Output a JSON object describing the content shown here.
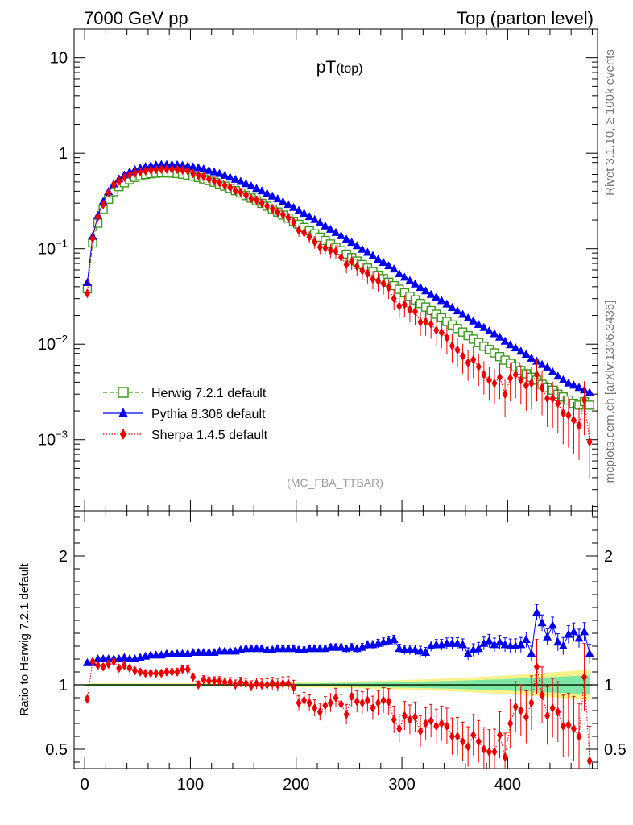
{
  "header": {
    "left": "7000 GeV pp",
    "right": "Top (parton level)"
  },
  "side": {
    "rivet": "Rivet 3.1.10, ≥ 100k events",
    "mcplots": "mcplots.cern.ch [arXiv:1306.3436]"
  },
  "colors": {
    "herwig": "#3a9a1a",
    "pythia": "#0000ee",
    "sherpa": "#ee0000",
    "band_green": "#7de8a6",
    "band_yellow": "#f8f28a"
  },
  "chart_data": [
    {
      "type": "line",
      "title": "pT",
      "title_sub": "(top)",
      "watermark": "(MC_FBA_TTBAR)",
      "xlim": [
        -10,
        485
      ],
      "ylim": [
        0.00018,
        20
      ],
      "yscale": "log",
      "ytick_labels": [
        "10",
        "1",
        "10−1",
        "10−2",
        "10−3"
      ],
      "ytick_values": [
        10,
        1,
        0.1,
        0.01,
        0.001
      ],
      "legend_position": "bottom-left",
      "legend": [
        "Herwig 7.2.1 default",
        "Pythia 8.308 default",
        "Sherpa 1.4.5 default"
      ],
      "x": [
        2.5,
        7.5,
        12.5,
        17.5,
        22.5,
        27.5,
        32.5,
        37.5,
        42.5,
        47.5,
        52.5,
        57.5,
        62.5,
        67.5,
        72.5,
        77.5,
        82.5,
        87.5,
        92.5,
        97.5,
        102.5,
        107.5,
        112.5,
        117.5,
        122.5,
        127.5,
        132.5,
        137.5,
        142.5,
        147.5,
        152.5,
        157.5,
        162.5,
        167.5,
        172.5,
        177.5,
        182.5,
        187.5,
        192.5,
        197.5,
        202.5,
        207.5,
        212.5,
        217.5,
        222.5,
        227.5,
        232.5,
        237.5,
        242.5,
        247.5,
        252.5,
        257.5,
        262.5,
        267.5,
        272.5,
        277.5,
        282.5,
        287.5,
        292.5,
        297.5,
        302.5,
        307.5,
        312.5,
        317.5,
        322.5,
        327.5,
        332.5,
        337.5,
        342.5,
        347.5,
        352.5,
        357.5,
        362.5,
        367.5,
        372.5,
        377.5,
        382.5,
        387.5,
        392.5,
        397.5,
        402.5,
        407.5,
        412.5,
        417.5,
        422.5,
        427.5,
        432.5,
        437.5,
        442.5,
        447.5,
        452.5,
        457.5,
        462.5,
        467.5,
        472.5,
        477.5
      ],
      "series": [
        {
          "name": "Herwig 7.2.1 default",
          "values": [
            0.038,
            0.115,
            0.185,
            0.258,
            0.33,
            0.395,
            0.447,
            0.49,
            0.528,
            0.558,
            0.58,
            0.598,
            0.61,
            0.618,
            0.622,
            0.622,
            0.619,
            0.613,
            0.603,
            0.59,
            0.575,
            0.557,
            0.538,
            0.517,
            0.496,
            0.474,
            0.451,
            0.428,
            0.405,
            0.383,
            0.36,
            0.339,
            0.318,
            0.298,
            0.279,
            0.26,
            0.242,
            0.225,
            0.209,
            0.194,
            0.18,
            0.167,
            0.154,
            0.143,
            0.132,
            0.122,
            0.112,
            0.103,
            0.0953,
            0.0877,
            0.0807,
            0.0742,
            0.0682,
            0.0627,
            0.0576,
            0.0529,
            0.0486,
            0.0446,
            0.041,
            0.0376,
            0.0345,
            0.0317,
            0.0291,
            0.0267,
            0.0245,
            0.0225,
            0.0206,
            0.0189,
            0.0173,
            0.0159,
            0.0146,
            0.0134,
            0.0123,
            0.0113,
            0.0104,
            0.0095,
            0.0088,
            0.0081,
            0.0074,
            0.0068,
            0.0063,
            0.0058,
            0.0053,
            0.0049,
            0.0045,
            0.0042,
            0.0038,
            0.0035,
            0.0033,
            0.003,
            0.0028,
            0.0026,
            0.0024,
            0.0023,
            0.0025,
            0.0023
          ]
        },
        {
          "name": "Pythia 8.308 default",
          "values": [
            0.044,
            0.134,
            0.222,
            0.31,
            0.395,
            0.474,
            0.536,
            0.588,
            0.634,
            0.67,
            0.698,
            0.72,
            0.736,
            0.748,
            0.755,
            0.758,
            0.757,
            0.752,
            0.744,
            0.732,
            0.717,
            0.7,
            0.68,
            0.658,
            0.635,
            0.61,
            0.584,
            0.557,
            0.53,
            0.503,
            0.477,
            0.451,
            0.425,
            0.401,
            0.377,
            0.353,
            0.331,
            0.309,
            0.289,
            0.269,
            0.25,
            0.233,
            0.216,
            0.201,
            0.186,
            0.172,
            0.159,
            0.147,
            0.136,
            0.125,
            0.116,
            0.107,
            0.098,
            0.091,
            0.084,
            0.077,
            0.0715,
            0.066,
            0.061,
            0.0545,
            0.05,
            0.046,
            0.0425,
            0.039,
            0.036,
            0.033,
            0.031,
            0.0285,
            0.0262,
            0.0241,
            0.0222,
            0.0204,
            0.0187,
            0.0174,
            0.016,
            0.0149,
            0.0137,
            0.0128,
            0.0118,
            0.0107,
            0.0098,
            0.0091,
            0.0084,
            0.0078,
            0.0071,
            0.0066,
            0.0061,
            0.0057,
            0.0051,
            0.0046,
            0.0042,
            0.0039,
            0.0037,
            0.0035,
            0.0033,
            0.0031
          ]
        },
        {
          "name": "Sherpa 1.4.5 default",
          "values": [
            0.034,
            0.128,
            0.215,
            0.29,
            0.385,
            0.47,
            0.51,
            0.56,
            0.594,
            0.62,
            0.64,
            0.655,
            0.668,
            0.675,
            0.68,
            0.682,
            0.68,
            0.675,
            0.666,
            0.655,
            0.612,
            0.586,
            0.57,
            0.535,
            0.51,
            0.49,
            0.46,
            0.438,
            0.405,
            0.39,
            0.365,
            0.335,
            0.322,
            0.3,
            0.28,
            0.262,
            0.242,
            0.228,
            0.212,
            0.19,
            0.155,
            0.147,
            0.133,
            0.118,
            0.104,
            0.102,
            0.096,
            0.094,
            0.081,
            0.068,
            0.074,
            0.065,
            0.059,
            0.055,
            0.048,
            0.046,
            0.043,
            0.039,
            0.03,
            0.025,
            0.026,
            0.023,
            0.022,
            0.017,
            0.0172,
            0.0162,
            0.014,
            0.0132,
            0.0117,
            0.0096,
            0.0087,
            0.0075,
            0.0064,
            0.0069,
            0.0058,
            0.0048,
            0.0042,
            0.0039,
            0.0045,
            0.003,
            0.0044,
            0.0048,
            0.0042,
            0.0037,
            0.0039,
            0.0048,
            0.0035,
            0.0027,
            0.0027,
            0.0024,
            0.0019,
            0.0018,
            0.0016,
            0.0014,
            0.0026,
            0.00095
          ]
        }
      ]
    },
    {
      "type": "line",
      "ylabel": "Ratio to Herwig 7.2.1 default",
      "xlim": [
        -10,
        485
      ],
      "ylim": [
        0.35,
        2.35
      ],
      "xtick_labels": [
        "0",
        "100",
        "200",
        "300",
        "400"
      ],
      "xtick_values": [
        0,
        100,
        200,
        300,
        400
      ],
      "ytick_labels": [
        "2",
        "1",
        "0.5"
      ],
      "ytick_values": [
        2,
        1,
        0.5
      ],
      "reference_line": 1,
      "x": [
        2.5,
        7.5,
        12.5,
        17.5,
        22.5,
        27.5,
        32.5,
        37.5,
        42.5,
        47.5,
        52.5,
        57.5,
        62.5,
        67.5,
        72.5,
        77.5,
        82.5,
        87.5,
        92.5,
        97.5,
        102.5,
        107.5,
        112.5,
        117.5,
        122.5,
        127.5,
        132.5,
        137.5,
        142.5,
        147.5,
        152.5,
        157.5,
        162.5,
        167.5,
        172.5,
        177.5,
        182.5,
        187.5,
        192.5,
        197.5,
        202.5,
        207.5,
        212.5,
        217.5,
        222.5,
        227.5,
        232.5,
        237.5,
        242.5,
        247.5,
        252.5,
        257.5,
        262.5,
        267.5,
        272.5,
        277.5,
        282.5,
        287.5,
        292.5,
        297.5,
        302.5,
        307.5,
        312.5,
        317.5,
        322.5,
        327.5,
        332.5,
        337.5,
        342.5,
        347.5,
        352.5,
        357.5,
        362.5,
        367.5,
        372.5,
        377.5,
        382.5,
        387.5,
        392.5,
        397.5,
        402.5,
        407.5,
        412.5,
        417.5,
        422.5,
        427.5,
        432.5,
        437.5,
        442.5,
        447.5,
        452.5,
        457.5,
        462.5,
        467.5,
        472.5,
        477.5
      ],
      "series": [
        {
          "name": "Pythia 8.308 default",
          "values": [
            1.17,
            1.17,
            1.2,
            1.2,
            1.2,
            1.2,
            1.2,
            1.21,
            1.2,
            1.2,
            1.21,
            1.22,
            1.23,
            1.23,
            1.23,
            1.24,
            1.24,
            1.24,
            1.24,
            1.24,
            1.25,
            1.25,
            1.25,
            1.25,
            1.25,
            1.26,
            1.26,
            1.26,
            1.26,
            1.27,
            1.28,
            1.28,
            1.28,
            1.28,
            1.27,
            1.27,
            1.28,
            1.28,
            1.28,
            1.28,
            1.27,
            1.27,
            1.28,
            1.28,
            1.28,
            1.28,
            1.29,
            1.29,
            1.29,
            1.28,
            1.29,
            1.28,
            1.29,
            1.31,
            1.31,
            1.32,
            1.33,
            1.34,
            1.35,
            1.28,
            1.27,
            1.27,
            1.27,
            1.26,
            1.25,
            1.3,
            1.31,
            1.31,
            1.32,
            1.32,
            1.32,
            1.31,
            1.24,
            1.27,
            1.28,
            1.32,
            1.34,
            1.31,
            1.33,
            1.31,
            1.3,
            1.3,
            1.31,
            1.35,
            1.24,
            1.56,
            1.48,
            1.37,
            1.46,
            1.33,
            1.3,
            1.39,
            1.41,
            1.36,
            1.41,
            1.24
          ]
        },
        {
          "name": "Sherpa 1.4.5 default",
          "values": [
            0.89,
            1.18,
            1.15,
            1.14,
            1.16,
            1.18,
            1.13,
            1.15,
            1.13,
            1.11,
            1.1,
            1.09,
            1.09,
            1.09,
            1.09,
            1.1,
            1.1,
            1.1,
            1.12,
            1.12,
            1.06,
            1.0,
            1.04,
            1.03,
            1.03,
            1.03,
            1.02,
            1.02,
            1.0,
            1.02,
            1.01,
            0.99,
            1.01,
            1.0,
            1.0,
            1.01,
            1.0,
            1.01,
            1.01,
            0.98,
            0.86,
            0.88,
            0.86,
            0.82,
            0.79,
            0.84,
            0.86,
            0.9,
            0.85,
            0.77,
            0.91,
            0.87,
            0.86,
            0.88,
            0.82,
            0.86,
            0.88,
            0.87,
            0.73,
            0.66,
            0.76,
            0.73,
            0.75,
            0.64,
            0.7,
            0.72,
            0.68,
            0.7,
            0.68,
            0.6,
            0.6,
            0.56,
            0.52,
            0.61,
            0.56,
            0.5,
            0.48,
            0.48,
            0.61,
            0.44,
            0.7,
            0.83,
            0.8,
            0.75,
            0.86,
            1.14,
            0.92,
            0.76,
            0.82,
            0.79,
            0.68,
            0.69,
            0.66,
            0.6,
            1.06,
            0.41
          ]
        }
      ]
    }
  ]
}
